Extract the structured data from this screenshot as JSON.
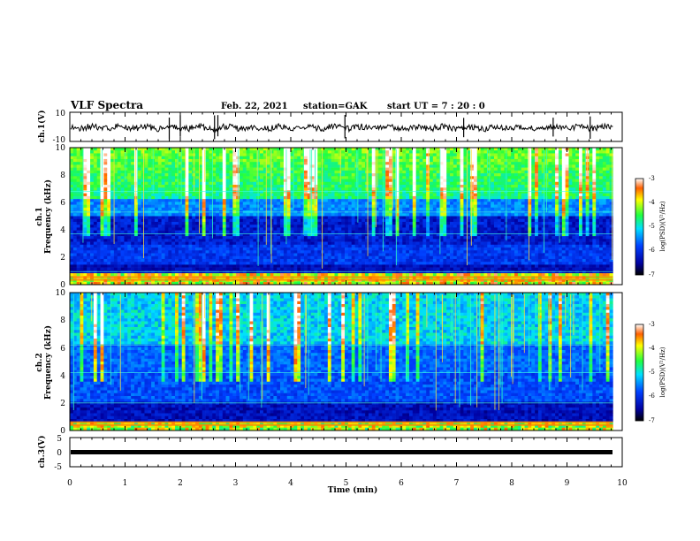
{
  "header": {
    "title": "VLF Spectra",
    "date": "Feb. 22, 2021",
    "station": "station=GAK",
    "start": "start  UT =   7 : 20 : 0"
  },
  "chart_data": [
    {
      "type": "line",
      "name": "ch1-waveform",
      "ylabel": "ch.1(V)",
      "ylim": [
        -10,
        10
      ],
      "yticks": [
        "10",
        "-10"
      ],
      "xlim": [
        0,
        10
      ]
    },
    {
      "type": "heatmap",
      "name": "ch1-spectrogram",
      "ylabel": "ch.1\nFrequency (kHz)",
      "ylim": [
        0,
        10
      ],
      "yticks": [
        "0",
        "2",
        "4",
        "6",
        "8",
        "10"
      ],
      "xlim": [
        0,
        10
      ],
      "colorbar": {
        "label": "log(PSD)(V²/Hz)",
        "range": [
          -7,
          -3
        ],
        "ticks": [
          "-3",
          "-4",
          "-5",
          "-6",
          "-7"
        ]
      }
    },
    {
      "type": "heatmap",
      "name": "ch2-spectrogram",
      "ylabel": "ch.2\nFrequency (kHz)",
      "ylim": [
        0,
        10
      ],
      "yticks": [
        "0",
        "2",
        "4",
        "6",
        "8",
        "10"
      ],
      "xlim": [
        0,
        10
      ],
      "colorbar": {
        "label": "log(PSD)(V²/Hz)",
        "range": [
          -7,
          -3
        ],
        "ticks": [
          "-3",
          "-4",
          "-5",
          "-6",
          "-7"
        ]
      }
    },
    {
      "type": "line",
      "name": "ch3-waveform",
      "ylabel": "ch.3(V)",
      "ylim": [
        -5,
        5
      ],
      "yticks": [
        "5",
        "0",
        "-5"
      ],
      "xlim": [
        0,
        10
      ],
      "values_note_free": true
    }
  ],
  "xaxis": {
    "label": "Time (min)",
    "ticks": [
      "0",
      "1",
      "2",
      "3",
      "4",
      "5",
      "6",
      "7",
      "8",
      "9",
      "10"
    ],
    "data_end": 9.83
  }
}
